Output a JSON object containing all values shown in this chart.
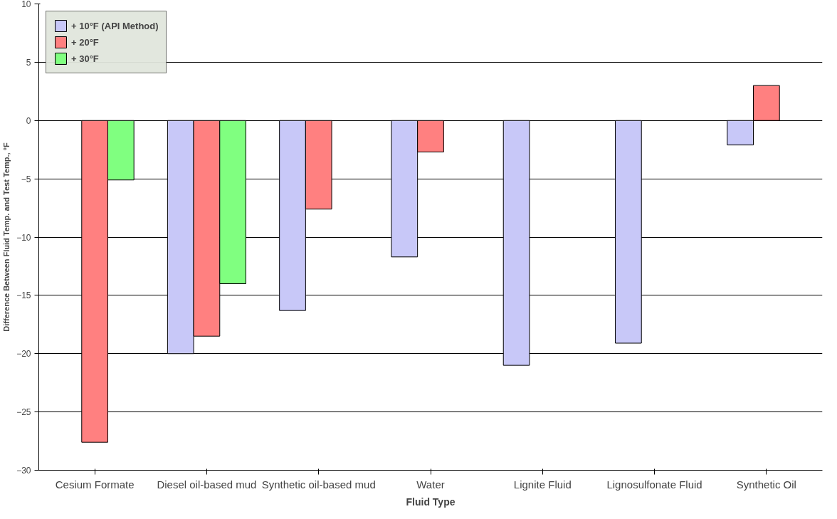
{
  "chart_data": {
    "type": "bar",
    "xlabel": "Fluid Type",
    "ylabel": "Difference Between Fluid Temp. and Test Temp., °F",
    "categories": [
      "Cesium Formate",
      "Diesel oil-based mud",
      "Synthetic oil-based mud",
      "Water",
      "Lignite Fluid",
      "Lignosulfonate Fluid",
      "Synthetic Oil"
    ],
    "series": [
      {
        "name": "+ 10°F (API Method)",
        "color": "#c8c8f8",
        "values": [
          null,
          -20.0,
          -16.3,
          -11.7,
          -21.0,
          -19.1,
          -2.1
        ]
      },
      {
        "name": "+ 20°F",
        "color": "#ff8080",
        "values": [
          -27.6,
          -18.5,
          -7.6,
          -2.7,
          null,
          null,
          3.0
        ]
      },
      {
        "name": "+ 30°F",
        "color": "#80ff80",
        "values": [
          -5.1,
          -14.0,
          null,
          null,
          null,
          null,
          null
        ]
      }
    ],
    "ylim": [
      -30,
      10
    ],
    "yticks": [
      -30,
      -25,
      -20,
      -15,
      -10,
      -5,
      0,
      5,
      10
    ],
    "grid": "y",
    "legend": "top left"
  }
}
